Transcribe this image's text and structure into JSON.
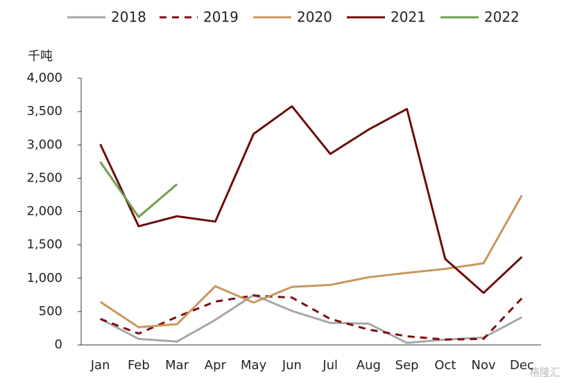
{
  "chart_data": {
    "type": "line",
    "y_label": "千吨",
    "watermark": "格隆汇",
    "categories": [
      "Jan",
      "Feb",
      "Mar",
      "Apr",
      "May",
      "Jun",
      "Jul",
      "Aug",
      "Sep",
      "Oct",
      "Nov",
      "Dec"
    ],
    "series": [
      {
        "name": "2018",
        "color": "#a6a6a6",
        "dashed": false,
        "values": [
          390,
          90,
          50,
          375,
          750,
          510,
          330,
          320,
          30,
          80,
          110,
          415
        ]
      },
      {
        "name": "2019",
        "color": "#7b0c0c",
        "dashed": true,
        "values": [
          390,
          170,
          420,
          650,
          740,
          710,
          390,
          230,
          130,
          80,
          90,
          700
        ]
      },
      {
        "name": "2020",
        "color": "#c8965a",
        "dashed": false,
        "values": [
          645,
          265,
          310,
          880,
          635,
          870,
          900,
          1015,
          1080,
          1140,
          1225,
          2245
        ]
      },
      {
        "name": "2021",
        "color": "#6b0a0a",
        "dashed": false,
        "values": [
          3010,
          1780,
          1930,
          1850,
          3165,
          3580,
          2865,
          3230,
          3540,
          1290,
          780,
          1320
        ]
      },
      {
        "name": "2022",
        "color": "#6e9d4a",
        "dashed": false,
        "values": [
          2745,
          1920,
          2410,
          null,
          null,
          null,
          null,
          null,
          null,
          null,
          null,
          null
        ]
      }
    ],
    "ylim": [
      0,
      4000
    ],
    "yticks": [
      0,
      500,
      {
        "value": 1000,
        "label": "1,000"
      },
      {
        "value": 1500,
        "label": "1,500"
      },
      {
        "value": 2000,
        "label": "2,000"
      },
      {
        "value": 2500,
        "label": "2,500"
      },
      {
        "value": 3000,
        "label": "3,000"
      },
      {
        "value": 3500,
        "label": "3,500"
      },
      {
        "value": 4000,
        "label": "4,000"
      }
    ],
    "grid": false,
    "legend": "top"
  }
}
